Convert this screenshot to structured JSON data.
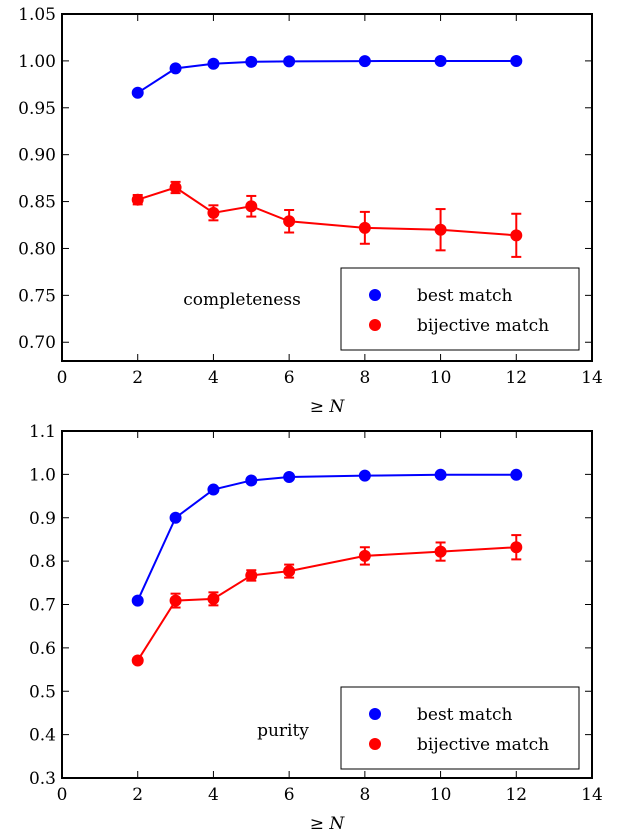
{
  "chart_data": [
    {
      "type": "line",
      "annotation": "completeness",
      "xlabel": "≥ N",
      "xlim": [
        0,
        14
      ],
      "ylim": [
        0.68,
        1.05
      ],
      "xticks": [
        0,
        2,
        4,
        6,
        8,
        10,
        12,
        14
      ],
      "yticks": [
        0.7,
        0.75,
        0.8,
        0.85,
        0.9,
        0.95,
        1.0,
        1.05
      ],
      "ytick_labels": [
        "0.70",
        "0.75",
        "0.80",
        "0.85",
        "0.90",
        "0.95",
        "1.00",
        "1.05"
      ],
      "grid": false,
      "legend_position": "bottom-right",
      "x": [
        2,
        3,
        4,
        5,
        6,
        8,
        10,
        12
      ],
      "series": [
        {
          "name": "best match",
          "color": "#0000ff",
          "values": [
            0.966,
            0.992,
            0.997,
            0.999,
            0.9995,
            0.9998,
            0.9999,
            0.9999
          ],
          "errors": [
            0,
            0,
            0,
            0,
            0,
            0,
            0,
            0
          ]
        },
        {
          "name": "bijective match",
          "color": "#ff0000",
          "values": [
            0.852,
            0.865,
            0.838,
            0.845,
            0.829,
            0.822,
            0.82,
            0.814
          ],
          "errors": [
            0.005,
            0.006,
            0.008,
            0.011,
            0.012,
            0.017,
            0.022,
            0.023
          ]
        }
      ]
    },
    {
      "type": "line",
      "annotation": "purity",
      "xlabel": "≥ N",
      "xlim": [
        0,
        14
      ],
      "ylim": [
        0.3,
        1.1
      ],
      "xticks": [
        0,
        2,
        4,
        6,
        8,
        10,
        12,
        14
      ],
      "yticks": [
        0.3,
        0.4,
        0.5,
        0.6,
        0.7,
        0.8,
        0.9,
        1.0,
        1.1
      ],
      "ytick_labels": [
        "0.3",
        "0.4",
        "0.5",
        "0.6",
        "0.7",
        "0.8",
        "0.9",
        "1.0",
        "1.1"
      ],
      "grid": false,
      "legend_position": "bottom-right",
      "x": [
        2,
        3,
        4,
        5,
        6,
        8,
        10,
        12
      ],
      "series": [
        {
          "name": "best match",
          "color": "#0000ff",
          "values": [
            0.709,
            0.9,
            0.965,
            0.986,
            0.994,
            0.997,
            0.999,
            0.999
          ],
          "errors": [
            0,
            0,
            0,
            0,
            0,
            0,
            0,
            0
          ]
        },
        {
          "name": "bijective match",
          "color": "#ff0000",
          "values": [
            0.571,
            0.709,
            0.713,
            0.767,
            0.777,
            0.812,
            0.822,
            0.832
          ],
          "errors": [
            0.005,
            0.016,
            0.015,
            0.012,
            0.015,
            0.02,
            0.021,
            0.028
          ]
        }
      ]
    }
  ]
}
